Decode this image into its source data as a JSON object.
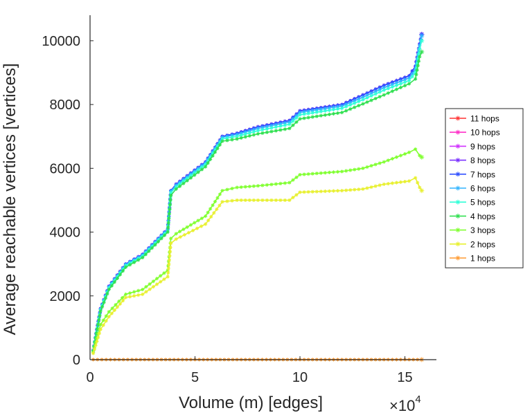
{
  "chart_data": {
    "type": "line",
    "title": "",
    "xlabel": "Volume (m) [edges]",
    "ylabel": "Average reachable vertices [vertices]",
    "x_multiplier_label": "×10",
    "x_multiplier_exp": "4",
    "xlim": [
      0,
      16.5
    ],
    "ylim": [
      0,
      10800
    ],
    "xticks": [
      0,
      5,
      10,
      15
    ],
    "xtick_labels": [
      "0",
      "5",
      "10",
      "15"
    ],
    "yticks": [
      0,
      2000,
      4000,
      6000,
      8000,
      10000
    ],
    "ytick_labels": [
      "0",
      "2000",
      "4000",
      "6000",
      "8000",
      "10000"
    ],
    "legend_position": "right",
    "x_units": "×10^4 edges",
    "series": [
      {
        "name": "11 hops",
        "color": "#ff3030",
        "x": [
          0.15,
          0.5,
          0.9,
          1.7,
          2.5,
          3.7,
          3.85,
          4.1,
          5.5,
          6.3,
          7,
          8,
          9.5,
          10,
          12,
          13,
          14,
          15.2,
          15.5,
          15.7,
          15.8
        ],
        "y": [
          300,
          1600,
          2300,
          3000,
          3300,
          4100,
          5300,
          5500,
          6200,
          7000,
          7100,
          7300,
          7500,
          7800,
          8000,
          8300,
          8600,
          8900,
          9200,
          9900,
          10200
        ]
      },
      {
        "name": "10 hops",
        "color": "#ff30c8",
        "x": [
          0.15,
          0.5,
          0.9,
          1.7,
          2.5,
          3.7,
          3.85,
          4.1,
          5.5,
          6.3,
          7,
          8,
          9.5,
          10,
          12,
          13,
          14,
          15.2,
          15.5,
          15.7,
          15.8
        ],
        "y": [
          300,
          1600,
          2300,
          3000,
          3300,
          4100,
          5300,
          5500,
          6200,
          7000,
          7100,
          7300,
          7500,
          7800,
          8000,
          8300,
          8600,
          8900,
          9200,
          9900,
          10200
        ]
      },
      {
        "name": "9 hops",
        "color": "#d030ff",
        "x": [
          0.15,
          0.5,
          0.9,
          1.7,
          2.5,
          3.7,
          3.85,
          4.1,
          5.5,
          6.3,
          7,
          8,
          9.5,
          10,
          12,
          13,
          14,
          15.2,
          15.5,
          15.7,
          15.8
        ],
        "y": [
          300,
          1600,
          2300,
          3000,
          3300,
          4100,
          5300,
          5500,
          6200,
          7000,
          7100,
          7300,
          7500,
          7800,
          8000,
          8300,
          8600,
          8900,
          9200,
          9900,
          10200
        ]
      },
      {
        "name": "8 hops",
        "color": "#7a30ff",
        "x": [
          0.15,
          0.5,
          0.9,
          1.7,
          2.5,
          3.7,
          3.85,
          4.1,
          5.5,
          6.3,
          7,
          8,
          9.5,
          10,
          12,
          13,
          14,
          15.2,
          15.5,
          15.7,
          15.8
        ],
        "y": [
          300,
          1600,
          2300,
          3000,
          3300,
          4100,
          5300,
          5500,
          6200,
          7000,
          7100,
          7300,
          7500,
          7800,
          8000,
          8300,
          8600,
          8900,
          9200,
          9900,
          10200
        ]
      },
      {
        "name": "7 hops",
        "color": "#3050ff",
        "x": [
          0.15,
          0.5,
          0.9,
          1.7,
          2.5,
          3.7,
          3.85,
          4.1,
          5.5,
          6.3,
          7,
          8,
          9.5,
          10,
          12,
          13,
          14,
          15.2,
          15.5,
          15.7,
          15.8
        ],
        "y": [
          300,
          1600,
          2300,
          3000,
          3300,
          4100,
          5300,
          5500,
          6200,
          7000,
          7100,
          7300,
          7500,
          7800,
          8000,
          8300,
          8600,
          8900,
          9200,
          9900,
          10200
        ]
      },
      {
        "name": "6 hops",
        "color": "#30b4ff",
        "x": [
          0.15,
          0.5,
          0.9,
          1.7,
          2.5,
          3.7,
          3.85,
          4.1,
          5.5,
          6.3,
          7,
          8,
          9.5,
          10,
          12,
          13,
          14,
          15.2,
          15.5,
          15.7,
          15.8
        ],
        "y": [
          290,
          1580,
          2280,
          2980,
          3280,
          4080,
          5280,
          5470,
          6170,
          6970,
          7060,
          7250,
          7450,
          7750,
          7950,
          8230,
          8530,
          8830,
          9100,
          9850,
          10150
        ]
      },
      {
        "name": "5 hops",
        "color": "#30ffd8",
        "x": [
          0.15,
          0.5,
          0.9,
          1.7,
          2.5,
          3.7,
          3.85,
          4.1,
          5.5,
          6.3,
          7,
          8,
          9.5,
          10,
          12,
          13,
          14,
          15.2,
          15.5,
          15.7,
          15.8
        ],
        "y": [
          280,
          1560,
          2250,
          2950,
          3250,
          4050,
          5230,
          5420,
          6120,
          6920,
          7000,
          7180,
          7380,
          7680,
          7880,
          8150,
          8450,
          8750,
          9000,
          9750,
          10000
        ]
      },
      {
        "name": "4 hops",
        "color": "#30e050",
        "x": [
          0.15,
          0.5,
          0.9,
          1.7,
          2.5,
          3.7,
          3.85,
          4.1,
          5.5,
          6.3,
          7,
          8,
          9.5,
          10,
          12,
          13,
          14,
          15.2,
          15.5,
          15.7,
          15.8
        ],
        "y": [
          270,
          1520,
          2200,
          2900,
          3200,
          4000,
          5150,
          5350,
          6050,
          6850,
          6920,
          7080,
          7250,
          7550,
          7750,
          8020,
          8300,
          8650,
          8800,
          9500,
          9650
        ]
      },
      {
        "name": "3 hops",
        "color": "#80ff30",
        "x": [
          0.15,
          0.5,
          0.9,
          1.7,
          2.5,
          3.7,
          3.85,
          4.1,
          5.5,
          6.3,
          7,
          8,
          9.5,
          10,
          12,
          13,
          14,
          15.2,
          15.5,
          15.7,
          15.8
        ],
        "y": [
          230,
          1100,
          1500,
          2050,
          2200,
          2800,
          3800,
          3950,
          4500,
          5300,
          5400,
          5450,
          5550,
          5800,
          5900,
          6000,
          6200,
          6500,
          6600,
          6400,
          6350
        ]
      },
      {
        "name": "2 hops",
        "color": "#e8f030",
        "x": [
          0.15,
          0.5,
          0.9,
          1.7,
          2.5,
          3.7,
          3.85,
          4.1,
          5.5,
          6.3,
          7,
          8,
          9.5,
          10,
          12,
          13,
          14,
          15.2,
          15.5,
          15.7,
          15.8
        ],
        "y": [
          200,
          950,
          1350,
          1950,
          2050,
          2600,
          3650,
          3780,
          4250,
          4950,
          5000,
          5000,
          5000,
          5250,
          5300,
          5350,
          5500,
          5600,
          5700,
          5400,
          5300
        ]
      },
      {
        "name": "1 hops",
        "color": "#ff9a30",
        "x": [
          0.15,
          2,
          4,
          6,
          8,
          10,
          12,
          14,
          15.8
        ],
        "y": [
          2,
          2,
          2,
          2,
          2,
          2,
          2,
          2,
          2
        ]
      }
    ]
  }
}
